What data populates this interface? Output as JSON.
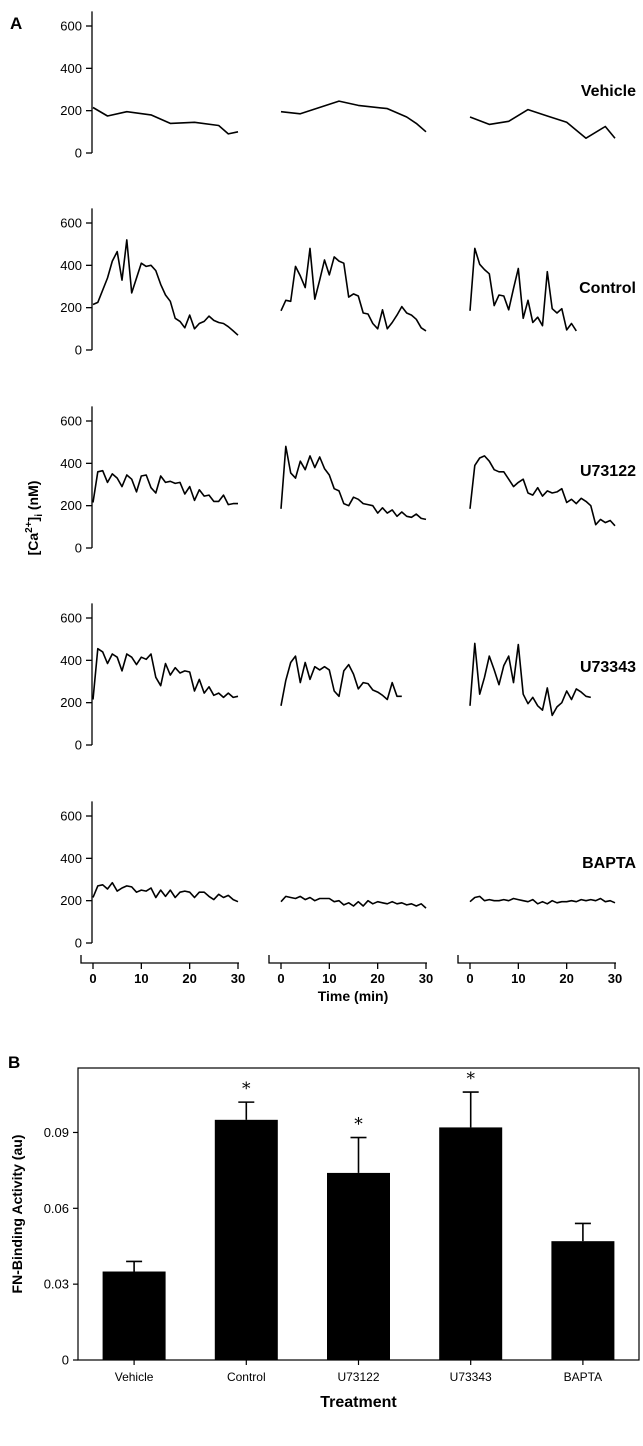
{
  "panel_a_label": "A",
  "panel_b_label": "B",
  "chart_data": [
    {
      "type": "line",
      "panel": "A",
      "ylabel": "[Ca2+]i (nM)",
      "xlabel": "Time (min)",
      "ylim": [
        0,
        650
      ],
      "xlim": [
        0,
        30
      ],
      "yticks": [
        0,
        200,
        400,
        600
      ],
      "xticks": [
        0,
        10,
        20,
        30
      ],
      "rows": [
        {
          "name": "Vehicle",
          "traces": [
            {
              "x": [
                0,
                3,
                7,
                12,
                16,
                21,
                26,
                28,
                30
              ],
              "y": [
                215,
                175,
                195,
                180,
                140,
                145,
                130,
                90,
                100
              ]
            },
            {
              "x": [
                0,
                4,
                12,
                16,
                22,
                26,
                28,
                30
              ],
              "y": [
                195,
                185,
                245,
                225,
                210,
                170,
                140,
                100
              ]
            },
            {
              "x": [
                0,
                4,
                8,
                12,
                16,
                20,
                24,
                28,
                30
              ],
              "y": [
                170,
                135,
                150,
                205,
                175,
                145,
                70,
                125,
                70
              ]
            }
          ]
        },
        {
          "name": "Control",
          "traces": [
            {
              "x": [
                0,
                1,
                3,
                4,
                5,
                6,
                7,
                8,
                10,
                11,
                12,
                13,
                14,
                15,
                16,
                17,
                18,
                19,
                20,
                21,
                22,
                23,
                24,
                25,
                26,
                27,
                28,
                29,
                30
              ],
              "y": [
                215,
                225,
                340,
                420,
                465,
                330,
                520,
                270,
                410,
                395,
                400,
                375,
                310,
                260,
                230,
                150,
                135,
                105,
                165,
                100,
                125,
                135,
                160,
                140,
                130,
                125,
                110,
                90,
                70
              ]
            },
            {
              "x": [
                0,
                1,
                2,
                3,
                4,
                5,
                6,
                7,
                8,
                9,
                10,
                11,
                12,
                13,
                14,
                15,
                16,
                17,
                18,
                19,
                20,
                21,
                22,
                23,
                24,
                25,
                26,
                27,
                28,
                29,
                30
              ],
              "y": [
                185,
                235,
                230,
                395,
                350,
                295,
                480,
                240,
                330,
                425,
                355,
                440,
                420,
                410,
                250,
                265,
                255,
                175,
                170,
                125,
                100,
                190,
                100,
                130,
                165,
                205,
                175,
                165,
                145,
                105,
                90
              ]
            },
            {
              "x": [
                0,
                1,
                2,
                3,
                4,
                5,
                6,
                7,
                8,
                9,
                10,
                11,
                12,
                13,
                14,
                15,
                16,
                17,
                18,
                19,
                20,
                21,
                22
              ],
              "y": [
                185,
                480,
                405,
                380,
                360,
                210,
                260,
                255,
                190,
                290,
                385,
                150,
                235,
                130,
                155,
                115,
                370,
                195,
                175,
                195,
                95,
                125,
                90
              ]
            }
          ]
        },
        {
          "name": "U73122",
          "traces": [
            {
              "x": [
                0,
                1,
                2,
                3,
                4,
                5,
                6,
                7,
                8,
                9,
                10,
                11,
                12,
                13,
                14,
                15,
                16,
                17,
                18,
                19,
                20,
                21,
                22,
                23,
                24,
                25,
                26,
                27,
                28,
                29,
                30
              ],
              "y": [
                215,
                360,
                365,
                310,
                350,
                330,
                290,
                345,
                325,
                265,
                340,
                345,
                285,
                260,
                340,
                310,
                315,
                305,
                310,
                255,
                290,
                225,
                275,
                245,
                250,
                220,
                220,
                250,
                205,
                210,
                210
              ]
            },
            {
              "x": [
                0,
                1,
                2,
                3,
                4,
                5,
                6,
                7,
                8,
                9,
                10,
                11,
                12,
                13,
                14,
                15,
                16,
                17,
                18,
                19,
                20,
                21,
                22,
                23,
                24,
                25,
                26,
                27,
                28,
                29,
                30
              ],
              "y": [
                185,
                480,
                355,
                330,
                410,
                370,
                435,
                380,
                430,
                375,
                345,
                280,
                270,
                210,
                200,
                240,
                230,
                210,
                205,
                200,
                165,
                190,
                165,
                180,
                150,
                170,
                150,
                145,
                160,
                140,
                135
              ]
            },
            {
              "x": [
                0,
                1,
                2,
                3,
                4,
                5,
                6,
                7,
                8,
                9,
                10,
                11,
                12,
                13,
                14,
                15,
                16,
                17,
                18,
                19,
                20,
                21,
                22,
                23,
                24,
                25,
                26,
                27,
                28,
                29,
                30
              ],
              "y": [
                185,
                390,
                425,
                435,
                410,
                370,
                360,
                360,
                325,
                290,
                310,
                325,
                260,
                250,
                285,
                245,
                270,
                260,
                265,
                280,
                215,
                230,
                210,
                235,
                220,
                200,
                110,
                135,
                120,
                130,
                105
              ]
            }
          ]
        },
        {
          "name": "U73343",
          "traces": [
            {
              "x": [
                0,
                1,
                2,
                3,
                4,
                5,
                6,
                7,
                8,
                9,
                10,
                11,
                12,
                13,
                14,
                15,
                16,
                17,
                18,
                19,
                20,
                21,
                22,
                23,
                24,
                25,
                26,
                27,
                28,
                29,
                30
              ],
              "y": [
                215,
                455,
                440,
                385,
                430,
                415,
                350,
                430,
                415,
                380,
                415,
                405,
                430,
                320,
                280,
                385,
                330,
                365,
                340,
                350,
                345,
                255,
                310,
                245,
                275,
                235,
                245,
                225,
                245,
                225,
                230
              ]
            },
            {
              "x": [
                0,
                1,
                2,
                3,
                4,
                5,
                6,
                7,
                8,
                9,
                10,
                11,
                12,
                13,
                14,
                15,
                16,
                17,
                18,
                19,
                20,
                21,
                22,
                23,
                24,
                25
              ],
              "y": [
                185,
                305,
                390,
                420,
                295,
                390,
                310,
                370,
                355,
                370,
                355,
                255,
                230,
                350,
                380,
                335,
                265,
                295,
                290,
                260,
                250,
                235,
                215,
                295,
                230,
                230
              ]
            },
            {
              "x": [
                0,
                1,
                2,
                3,
                4,
                5,
                6,
                7,
                8,
                9,
                10,
                11,
                12,
                13,
                14,
                15,
                16,
                17,
                18,
                19,
                20,
                21,
                22,
                23,
                24,
                25
              ],
              "y": [
                185,
                480,
                240,
                320,
                420,
                355,
                285,
                375,
                420,
                295,
                475,
                240,
                195,
                225,
                185,
                165,
                270,
                140,
                180,
                200,
                255,
                215,
                265,
                250,
                230,
                225
              ]
            }
          ]
        },
        {
          "name": "BAPTA",
          "traces": [
            {
              "x": [
                0,
                1,
                2,
                3,
                4,
                5,
                6,
                7,
                8,
                9,
                10,
                11,
                12,
                13,
                14,
                15,
                16,
                17,
                18,
                19,
                20,
                21,
                22,
                23,
                24,
                25,
                26,
                27,
                28,
                29,
                30
              ],
              "y": [
                215,
                270,
                275,
                255,
                285,
                245,
                260,
                270,
                265,
                240,
                250,
                245,
                260,
                215,
                250,
                220,
                250,
                215,
                240,
                245,
                240,
                215,
                240,
                240,
                220,
                205,
                230,
                215,
                225,
                205,
                195
              ]
            },
            {
              "x": [
                0,
                1,
                2,
                3,
                4,
                5,
                6,
                7,
                8,
                9,
                10,
                11,
                12,
                13,
                14,
                15,
                16,
                17,
                18,
                19,
                20,
                21,
                22,
                23,
                24,
                25,
                26,
                27,
                28,
                29,
                30
              ],
              "y": [
                195,
                220,
                215,
                210,
                220,
                205,
                215,
                200,
                210,
                210,
                210,
                195,
                200,
                180,
                190,
                175,
                195,
                175,
                200,
                185,
                195,
                190,
                185,
                195,
                185,
                190,
                180,
                185,
                175,
                185,
                165
              ]
            },
            {
              "x": [
                0,
                1,
                2,
                3,
                4,
                5,
                6,
                7,
                8,
                9,
                10,
                11,
                12,
                13,
                14,
                15,
                16,
                17,
                18,
                19,
                20,
                21,
                22,
                23,
                24,
                25,
                26,
                27,
                28,
                29,
                30
              ],
              "y": [
                195,
                215,
                220,
                200,
                205,
                200,
                200,
                205,
                200,
                210,
                205,
                200,
                195,
                205,
                185,
                195,
                185,
                200,
                190,
                195,
                195,
                200,
                195,
                205,
                200,
                205,
                200,
                210,
                195,
                200,
                190
              ]
            }
          ]
        }
      ]
    },
    {
      "type": "bar",
      "panel": "B",
      "categories": [
        "Vehicle",
        "Control",
        "U73122",
        "U73343",
        "BAPTA"
      ],
      "values": [
        0.035,
        0.095,
        0.074,
        0.092,
        0.047
      ],
      "errors": [
        0.004,
        0.007,
        0.014,
        0.014,
        0.007
      ],
      "significant": [
        false,
        true,
        true,
        true,
        false
      ],
      "sig_marker": "*",
      "ylabel": "FN-Binding Activity (au)",
      "xlabel": "Treatment",
      "ylim": [
        0,
        0.1155
      ],
      "yticks": [
        0,
        0.03,
        0.06,
        0.09
      ],
      "ytick_labels": [
        "0",
        "0.03",
        "0.06",
        "0.09"
      ]
    }
  ]
}
